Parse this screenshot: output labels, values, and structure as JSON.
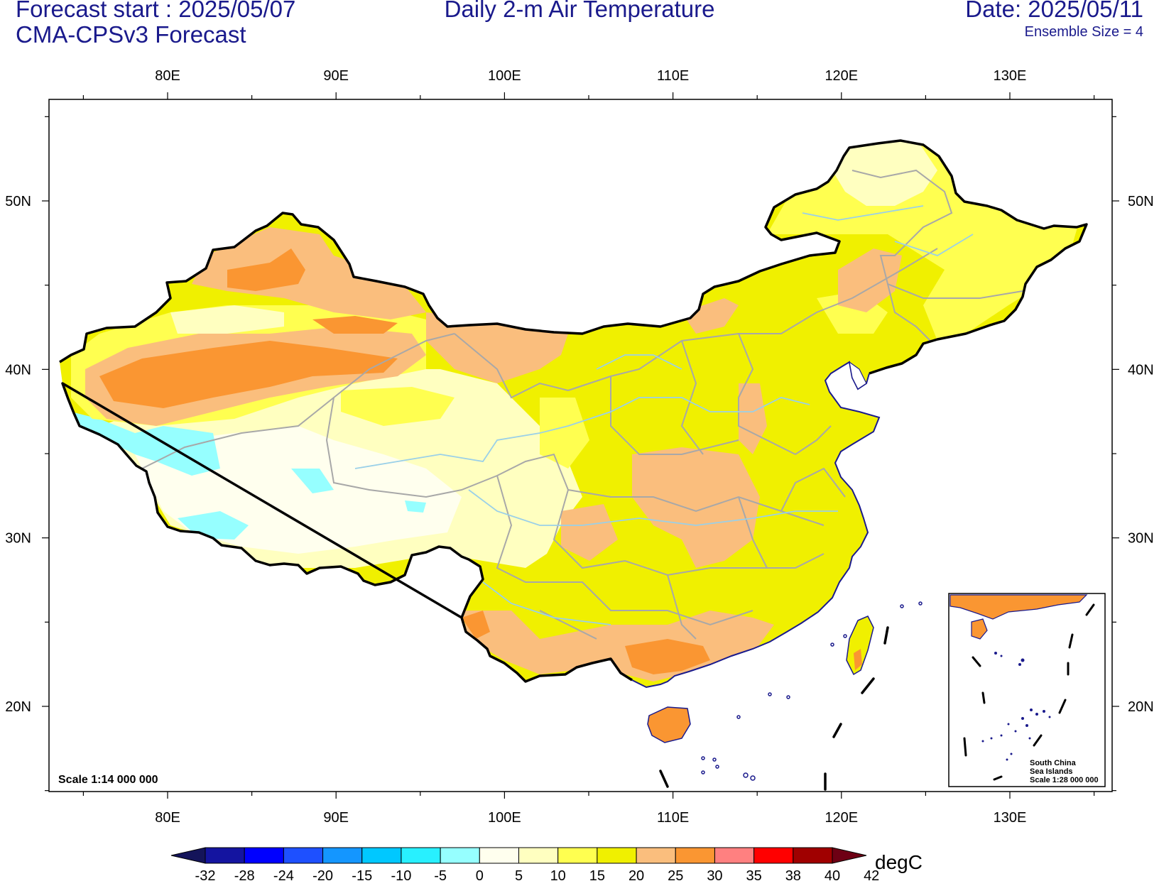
{
  "header": {
    "forecast_start": "Forecast start : 2025/05/07",
    "model": "CMA-CPSv3 Forecast",
    "title": "Daily 2-m Air Temperature",
    "date": "Date: 2025/05/11",
    "ensemble": "Ensemble Size = 4"
  },
  "map": {
    "region": "China",
    "projection": "lat-lon",
    "lon_range": [
      73,
      136
    ],
    "lat_range": [
      15,
      56
    ],
    "lon_ticks": [
      "80E",
      "90E",
      "100E",
      "110E",
      "120E",
      "130E"
    ],
    "lat_ticks": [
      "50N",
      "40N",
      "30N",
      "20N"
    ],
    "scale_text": "Scale 1:14 000 000",
    "inset": {
      "line1": "South China",
      "line2": "Sea Islands",
      "line3": "Scale 1:28 000 000"
    }
  },
  "colorbar": {
    "unit": "degC",
    "levels": [
      "-32",
      "-28",
      "-24",
      "-20",
      "-15",
      "-10",
      "-5",
      "0",
      "5",
      "10",
      "15",
      "20",
      "25",
      "30",
      "35",
      "38",
      "40",
      "42"
    ],
    "colors": [
      "#14145a",
      "#1414a0",
      "#0000ff",
      "#1e50ff",
      "#1496ff",
      "#00c8ff",
      "#28f0ff",
      "#96ffff",
      "#ffffee",
      "#ffffc0",
      "#ffff50",
      "#f0f000",
      "#fabe7d",
      "#fa9632",
      "#ff8080",
      "#ff0000",
      "#a00000",
      "#6e0014"
    ]
  }
}
